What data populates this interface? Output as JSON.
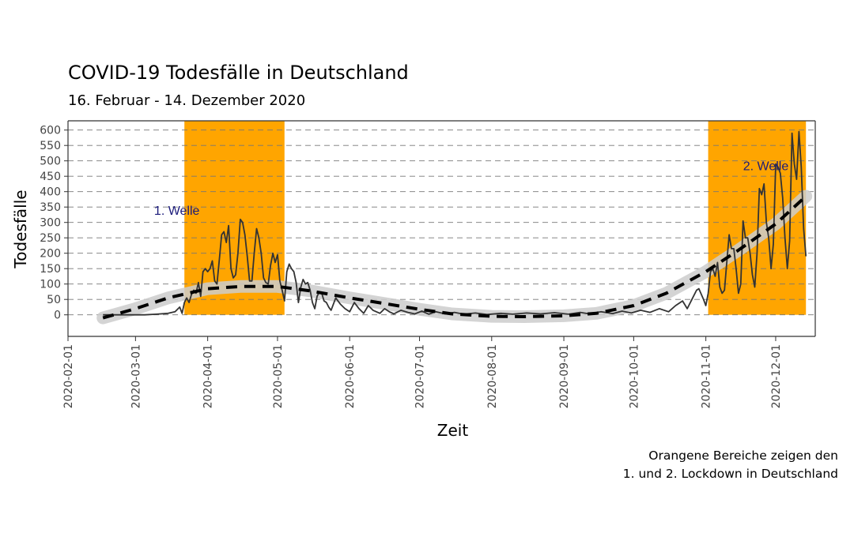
{
  "title": "COVID-19 Todesfälle in Deutschland",
  "subtitle": "16. Februar - 14. Dezember 2020",
  "caption": {
    "line1": "Orangene Bereiche zeigen den",
    "line2": "1. und 2. Lockdown in Deutschland"
  },
  "chart_data": {
    "type": "line",
    "xlabel": "Zeit",
    "ylabel": "Todesfälle",
    "x_ticks": [
      "2020-02-01",
      "2020-03-01",
      "2020-04-01",
      "2020-05-01",
      "2020-06-01",
      "2020-07-01",
      "2020-08-01",
      "2020-09-01",
      "2020-10-01",
      "2020-11-01",
      "2020-12-01"
    ],
    "y_ticks": [
      0,
      50,
      100,
      150,
      200,
      250,
      300,
      350,
      400,
      450,
      500,
      550,
      600
    ],
    "xlim": [
      "2020-02-01",
      "2020-12-18"
    ],
    "ylim": [
      -70,
      630
    ],
    "grid": "horizontal dashed",
    "shaded_regions": [
      {
        "start": "2020-03-22",
        "end": "2020-05-04",
        "color": "#FFA500"
      },
      {
        "start": "2020-11-02",
        "end": "2020-12-14",
        "color": "#FFA500"
      }
    ],
    "annotations": [
      {
        "text": "1. Welle",
        "x": "2020-03-09",
        "y": 325
      },
      {
        "text": "2. Welle",
        "x": "2020-11-17",
        "y": 470
      }
    ],
    "series": [
      {
        "kind": "daily",
        "color": "#333333",
        "points": [
          [
            "2020-02-16",
            0
          ],
          [
            "2020-02-25",
            0
          ],
          [
            "2020-03-05",
            0
          ],
          [
            "2020-03-10",
            2
          ],
          [
            "2020-03-15",
            5
          ],
          [
            "2020-03-18",
            10
          ],
          [
            "2020-03-20",
            25
          ],
          [
            "2020-03-21",
            5
          ],
          [
            "2020-03-22",
            40
          ],
          [
            "2020-03-23",
            55
          ],
          [
            "2020-03-24",
            40
          ],
          [
            "2020-03-25",
            65
          ],
          [
            "2020-03-26",
            80
          ],
          [
            "2020-03-27",
            70
          ],
          [
            "2020-03-28",
            105
          ],
          [
            "2020-03-29",
            60
          ],
          [
            "2020-03-30",
            140
          ],
          [
            "2020-03-31",
            150
          ],
          [
            "2020-04-01",
            140
          ],
          [
            "2020-04-02",
            150
          ],
          [
            "2020-04-03",
            175
          ],
          [
            "2020-04-04",
            110
          ],
          [
            "2020-04-05",
            100
          ],
          [
            "2020-04-06",
            180
          ],
          [
            "2020-04-07",
            260
          ],
          [
            "2020-04-08",
            270
          ],
          [
            "2020-04-09",
            235
          ],
          [
            "2020-04-10",
            290
          ],
          [
            "2020-04-11",
            150
          ],
          [
            "2020-04-12",
            120
          ],
          [
            "2020-04-13",
            130
          ],
          [
            "2020-04-14",
            200
          ],
          [
            "2020-04-15",
            310
          ],
          [
            "2020-04-16",
            300
          ],
          [
            "2020-04-17",
            260
          ],
          [
            "2020-04-18",
            190
          ],
          [
            "2020-04-19",
            110
          ],
          [
            "2020-04-20",
            110
          ],
          [
            "2020-04-21",
            200
          ],
          [
            "2020-04-22",
            280
          ],
          [
            "2020-04-23",
            250
          ],
          [
            "2020-04-24",
            200
          ],
          [
            "2020-04-25",
            120
          ],
          [
            "2020-04-26",
            105
          ],
          [
            "2020-04-27",
            100
          ],
          [
            "2020-04-28",
            160
          ],
          [
            "2020-04-29",
            200
          ],
          [
            "2020-04-30",
            170
          ],
          [
            "2020-05-01",
            195
          ],
          [
            "2020-05-02",
            110
          ],
          [
            "2020-05-03",
            80
          ],
          [
            "2020-05-04",
            45
          ],
          [
            "2020-05-05",
            140
          ],
          [
            "2020-05-06",
            165
          ],
          [
            "2020-05-07",
            150
          ],
          [
            "2020-05-08",
            140
          ],
          [
            "2020-05-09",
            105
          ],
          [
            "2020-05-10",
            40
          ],
          [
            "2020-05-11",
            90
          ],
          [
            "2020-05-12",
            115
          ],
          [
            "2020-05-13",
            100
          ],
          [
            "2020-05-14",
            105
          ],
          [
            "2020-05-15",
            80
          ],
          [
            "2020-05-16",
            40
          ],
          [
            "2020-05-17",
            20
          ],
          [
            "2020-05-18",
            60
          ],
          [
            "2020-05-19",
            75
          ],
          [
            "2020-05-20",
            70
          ],
          [
            "2020-05-21",
            45
          ],
          [
            "2020-05-22",
            40
          ],
          [
            "2020-05-23",
            25
          ],
          [
            "2020-05-24",
            15
          ],
          [
            "2020-05-26",
            55
          ],
          [
            "2020-05-28",
            35
          ],
          [
            "2020-05-30",
            20
          ],
          [
            "2020-06-01",
            10
          ],
          [
            "2020-06-03",
            40
          ],
          [
            "2020-06-05",
            20
          ],
          [
            "2020-06-07",
            5
          ],
          [
            "2020-06-09",
            30
          ],
          [
            "2020-06-11",
            15
          ],
          [
            "2020-06-14",
            5
          ],
          [
            "2020-06-16",
            20
          ],
          [
            "2020-06-18",
            10
          ],
          [
            "2020-06-20",
            3
          ],
          [
            "2020-06-23",
            15
          ],
          [
            "2020-06-26",
            8
          ],
          [
            "2020-06-29",
            3
          ],
          [
            "2020-07-02",
            12
          ],
          [
            "2020-07-05",
            2
          ],
          [
            "2020-07-08",
            10
          ],
          [
            "2020-07-12",
            3
          ],
          [
            "2020-07-16",
            8
          ],
          [
            "2020-07-20",
            2
          ],
          [
            "2020-07-25",
            6
          ],
          [
            "2020-07-30",
            1
          ],
          [
            "2020-08-05",
            5
          ],
          [
            "2020-08-10",
            2
          ],
          [
            "2020-08-16",
            6
          ],
          [
            "2020-08-22",
            3
          ],
          [
            "2020-08-28",
            7
          ],
          [
            "2020-09-03",
            2
          ],
          [
            "2020-09-08",
            8
          ],
          [
            "2020-09-12",
            3
          ],
          [
            "2020-09-17",
            10
          ],
          [
            "2020-09-22",
            4
          ],
          [
            "2020-09-26",
            12
          ],
          [
            "2020-09-30",
            6
          ],
          [
            "2020-10-04",
            15
          ],
          [
            "2020-10-08",
            8
          ],
          [
            "2020-10-12",
            20
          ],
          [
            "2020-10-16",
            10
          ],
          [
            "2020-10-19",
            30
          ],
          [
            "2020-10-22",
            45
          ],
          [
            "2020-10-24",
            20
          ],
          [
            "2020-10-26",
            50
          ],
          [
            "2020-10-28",
            80
          ],
          [
            "2020-10-29",
            85
          ],
          [
            "2020-10-31",
            50
          ],
          [
            "2020-11-01",
            30
          ],
          [
            "2020-11-02",
            70
          ],
          [
            "2020-11-03",
            140
          ],
          [
            "2020-11-04",
            150
          ],
          [
            "2020-11-05",
            125
          ],
          [
            "2020-11-06",
            170
          ],
          [
            "2020-11-07",
            90
          ],
          [
            "2020-11-08",
            70
          ],
          [
            "2020-11-09",
            80
          ],
          [
            "2020-11-10",
            170
          ],
          [
            "2020-11-11",
            260
          ],
          [
            "2020-11-12",
            215
          ],
          [
            "2020-11-13",
            215
          ],
          [
            "2020-11-14",
            150
          ],
          [
            "2020-11-15",
            70
          ],
          [
            "2020-11-16",
            100
          ],
          [
            "2020-11-17",
            305
          ],
          [
            "2020-11-18",
            250
          ],
          [
            "2020-11-19",
            250
          ],
          [
            "2020-11-20",
            200
          ],
          [
            "2020-11-21",
            130
          ],
          [
            "2020-11-22",
            90
          ],
          [
            "2020-11-23",
            200
          ],
          [
            "2020-11-24",
            410
          ],
          [
            "2020-11-25",
            390
          ],
          [
            "2020-11-26",
            425
          ],
          [
            "2020-11-27",
            300
          ],
          [
            "2020-11-28",
            250
          ],
          [
            "2020-11-29",
            150
          ],
          [
            "2020-11-30",
            230
          ],
          [
            "2020-12-01",
            490
          ],
          [
            "2020-12-02",
            480
          ],
          [
            "2020-12-03",
            460
          ],
          [
            "2020-12-04",
            380
          ],
          [
            "2020-12-05",
            250
          ],
          [
            "2020-12-06",
            150
          ],
          [
            "2020-12-07",
            240
          ],
          [
            "2020-12-08",
            590
          ],
          [
            "2020-12-09",
            490
          ],
          [
            "2020-12-10",
            440
          ],
          [
            "2020-12-11",
            595
          ],
          [
            "2020-12-12",
            480
          ],
          [
            "2020-12-13",
            280
          ],
          [
            "2020-12-14",
            190
          ]
        ]
      },
      {
        "kind": "trend",
        "style": "dashed",
        "color": "#000000",
        "band_color": "#cccccc",
        "points": [
          [
            "2020-02-16",
            -10
          ],
          [
            "2020-03-01",
            20
          ],
          [
            "2020-03-15",
            55
          ],
          [
            "2020-04-01",
            85
          ],
          [
            "2020-04-15",
            92
          ],
          [
            "2020-05-01",
            92
          ],
          [
            "2020-05-15",
            78
          ],
          [
            "2020-06-01",
            55
          ],
          [
            "2020-06-15",
            38
          ],
          [
            "2020-07-01",
            18
          ],
          [
            "2020-07-15",
            3
          ],
          [
            "2020-08-01",
            -5
          ],
          [
            "2020-08-15",
            -6
          ],
          [
            "2020-09-01",
            -3
          ],
          [
            "2020-09-15",
            5
          ],
          [
            "2020-10-01",
            30
          ],
          [
            "2020-10-15",
            70
          ],
          [
            "2020-11-01",
            140
          ],
          [
            "2020-11-15",
            210
          ],
          [
            "2020-12-01",
            295
          ],
          [
            "2020-12-14",
            385
          ]
        ]
      }
    ]
  }
}
